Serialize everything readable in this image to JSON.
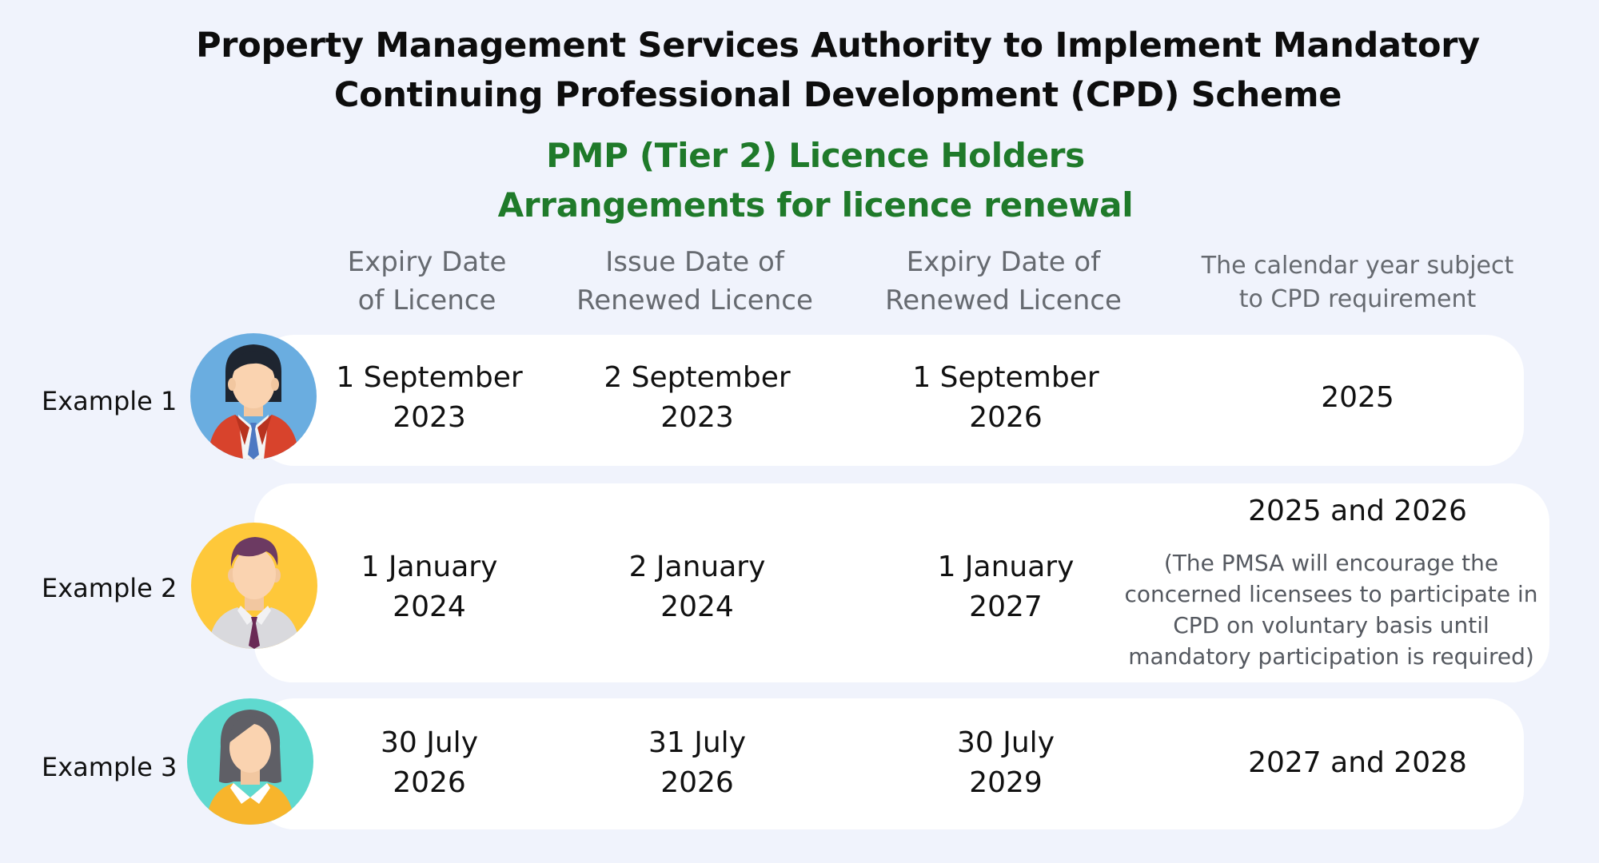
{
  "header": {
    "title_line1": "Property Management Services Authority to Implement Mandatory",
    "title_line2": "Continuing Professional Development (CPD) Scheme",
    "subtitle_line1": "PMP (Tier 2) Licence Holders",
    "subtitle_line2": "Arrangements for licence renewal"
  },
  "columns": [
    {
      "line1": "Expiry Date",
      "line2": "of Licence"
    },
    {
      "line1": "Issue Date of",
      "line2": "Renewed Licence"
    },
    {
      "line1": "Expiry Date of",
      "line2": "Renewed Licence"
    },
    {
      "line1": "The calendar year subject",
      "line2": "to CPD requirement"
    }
  ],
  "rows": [
    {
      "label": "Example 1",
      "avatar_icon": "businesswoman-red-jacket-avatar-icon",
      "expiry": {
        "line1": "1 September",
        "line2": "2023"
      },
      "issue": {
        "line1": "2 September",
        "line2": "2023"
      },
      "renewed_expiry": {
        "line1": "1 September",
        "line2": "2026"
      },
      "cpd_year": "2025"
    },
    {
      "label": "Example 2",
      "avatar_icon": "businessman-tie-avatar-icon",
      "expiry": {
        "line1": "1 January",
        "line2": "2024"
      },
      "issue": {
        "line1": "2 January",
        "line2": "2024"
      },
      "renewed_expiry": {
        "line1": "1 January",
        "line2": "2027"
      },
      "cpd_year": "2025 and 2026",
      "note": {
        "line1": "(The PMSA will encourage the",
        "line2": "concerned licensees to participate in",
        "line3": "CPD on voluntary basis until",
        "line4": "mandatory participation is required)"
      }
    },
    {
      "label": "Example 3",
      "avatar_icon": "woman-yellow-top-avatar-icon",
      "expiry": {
        "line1": "30 July",
        "line2": "2026"
      },
      "issue": {
        "line1": "31 July",
        "line2": "2026"
      },
      "renewed_expiry": {
        "line1": "30 July",
        "line2": "2029"
      },
      "cpd_year": "2027 and 2028"
    }
  ],
  "colors": {
    "background": "#f0f3fc",
    "card": "#ffffff",
    "subtitle_green": "#1f7a2a",
    "header_grey": "#666a70",
    "avatar1_bg": "#6aade0",
    "avatar2_bg": "#fec83a",
    "avatar3_bg": "#5fd9cf"
  }
}
